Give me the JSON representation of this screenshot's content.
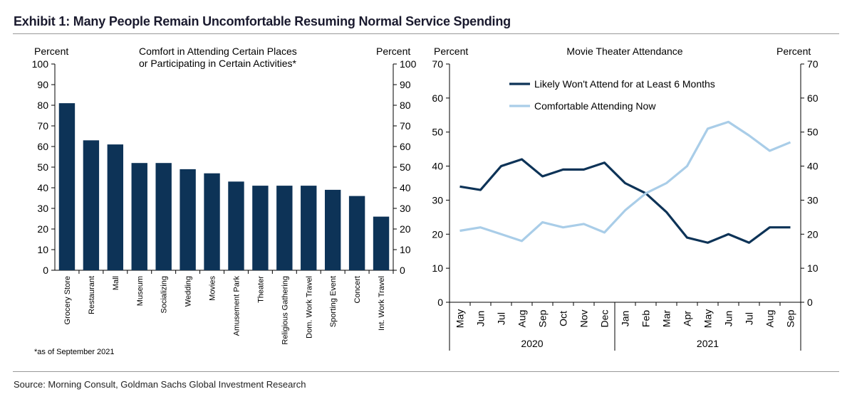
{
  "title": "Exhibit 1: Many People Remain Uncomfortable Resuming Normal Service Spending",
  "source": "Source: Morning Consult, Goldman Sachs Global Investment Research",
  "colors": {
    "navy": "#0d3357",
    "light_blue": "#a9cde8"
  },
  "chart_data": [
    {
      "type": "bar",
      "title": "Comfort in Attending Certain Places",
      "title_line2": "or Participating in Certain Activities*",
      "ylabel_left": "Percent",
      "ylabel_right": "Percent",
      "ylim": [
        0,
        100
      ],
      "yticks": [
        0,
        10,
        20,
        30,
        40,
        50,
        60,
        70,
        80,
        90,
        100
      ],
      "categories": [
        "Grocery Store",
        "Restaurant",
        "Mall",
        "Museum",
        "Socializing",
        "Wedding",
        "Movies",
        "Amusement Park",
        "Theater",
        "Religious Gathering",
        "Dom. Work Travel",
        "Sporting Event",
        "Concert",
        "Int. Work Travel"
      ],
      "values": [
        81,
        63,
        61,
        52,
        52,
        49,
        47,
        43,
        41,
        41,
        41,
        39,
        36,
        26
      ],
      "footnote": "*as of September 2021",
      "grid": false
    },
    {
      "type": "line",
      "title": "Movie Theater Attendance",
      "ylabel_left": "Percent",
      "ylabel_right": "Percent",
      "ylim": [
        0,
        70
      ],
      "yticks": [
        0,
        10,
        20,
        30,
        40,
        50,
        60,
        70
      ],
      "x": [
        "May",
        "Jun",
        "Jul",
        "Aug",
        "Sep",
        "Oct",
        "Nov",
        "Dec",
        "Jan",
        "Feb",
        "Mar",
        "Apr",
        "May",
        "Jun",
        "Jul",
        "Aug",
        "Sep"
      ],
      "year_groups": [
        {
          "label": "2020",
          "count": 8
        },
        {
          "label": "2021",
          "count": 9
        }
      ],
      "legend_position": "top",
      "grid": false,
      "series": [
        {
          "name": "Likely Won't Attend for at Least 6 Months",
          "values": [
            34,
            33,
            40,
            42,
            37,
            39,
            39,
            41,
            35,
            32,
            26.5,
            19,
            17.5,
            20,
            17.5,
            22,
            22
          ]
        },
        {
          "name": "Comfortable Attending Now",
          "values": [
            21,
            22,
            20,
            18,
            23.5,
            22,
            23,
            20.5,
            27,
            32,
            35,
            40,
            51,
            53,
            49,
            44.5,
            47
          ]
        }
      ]
    }
  ]
}
